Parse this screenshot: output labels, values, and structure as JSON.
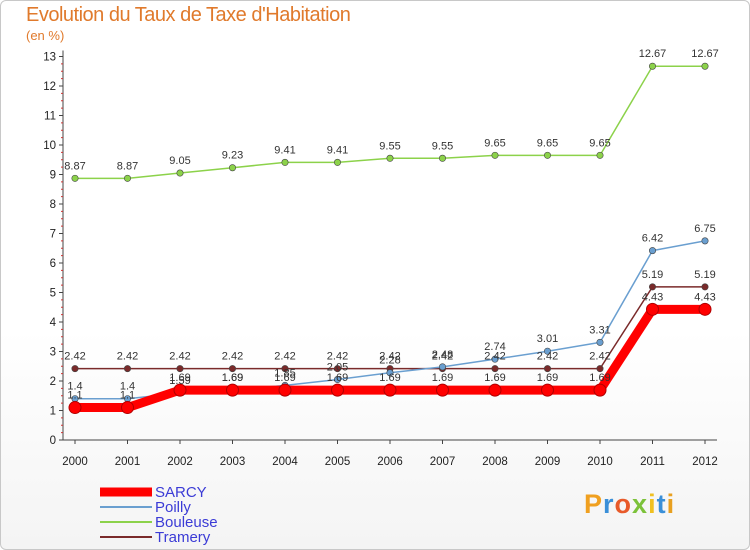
{
  "header": {
    "title": "Evolution du Taux de Taxe d'Habitation",
    "subtitle": "(en %)"
  },
  "logo": {
    "text": "Proxiti"
  },
  "chart_data": {
    "type": "line",
    "title": "Evolution du Taux de Taxe d'Habitation",
    "subtitle": "(en %)",
    "xlabel": "",
    "ylabel": "",
    "categories": [
      "2000",
      "2001",
      "2002",
      "2003",
      "2004",
      "2005",
      "2006",
      "2007",
      "2008",
      "2009",
      "2010",
      "2011",
      "2012"
    ],
    "ylim": [
      0,
      13
    ],
    "yticks": [
      0,
      1,
      2,
      3,
      4,
      5,
      6,
      7,
      8,
      9,
      10,
      11,
      12,
      13
    ],
    "grid": false,
    "legend_position": "bottom-left",
    "series": [
      {
        "name": "SARCY",
        "color": "#ff0000",
        "values": [
          1.1,
          1.1,
          1.69,
          1.69,
          1.69,
          1.69,
          1.69,
          1.69,
          1.69,
          1.69,
          1.69,
          4.43,
          4.43
        ],
        "labels": [
          "1.1",
          "1.1",
          "1.69",
          "1.69",
          "1.69",
          "1.69",
          "1.69",
          "1.69",
          "1.69",
          "1.69",
          "1.69",
          "4.43",
          "4.43"
        ]
      },
      {
        "name": "Poilly",
        "color": "#6a9fd0",
        "values": [
          1.4,
          1.4,
          1.59,
          1.69,
          1.85,
          2.05,
          2.28,
          2.48,
          2.74,
          3.01,
          3.31,
          6.42,
          6.75
        ],
        "labels": [
          "1.4",
          "1.4",
          "1.59",
          "1.69",
          "1.85",
          "2.05",
          "2.28",
          "2.48",
          "2.74",
          "3.01",
          "3.31",
          "6.42",
          "6.75"
        ]
      },
      {
        "name": "Bouleuse",
        "color": "#8cd24a",
        "values": [
          8.87,
          8.87,
          9.05,
          9.23,
          9.41,
          9.41,
          9.55,
          9.55,
          9.65,
          9.65,
          9.65,
          12.67,
          12.67
        ],
        "labels": [
          "8.87",
          "8.87",
          "9.05",
          "9.23",
          "9.41",
          "9.41",
          "9.55",
          "9.55",
          "9.65",
          "9.65",
          "9.65",
          "12.67",
          "12.67"
        ]
      },
      {
        "name": "Tramery",
        "color": "#7a2a2a",
        "values": [
          2.42,
          2.42,
          2.42,
          2.42,
          2.42,
          2.42,
          2.42,
          2.42,
          2.42,
          2.42,
          2.42,
          5.19,
          5.19
        ],
        "labels": [
          "2.42",
          "2.42",
          "2.42",
          "2.42",
          "2.42",
          "2.42",
          "2.42",
          "2.42",
          "2.42",
          "2.42",
          "2.42",
          "5.19",
          "5.19"
        ]
      }
    ]
  }
}
